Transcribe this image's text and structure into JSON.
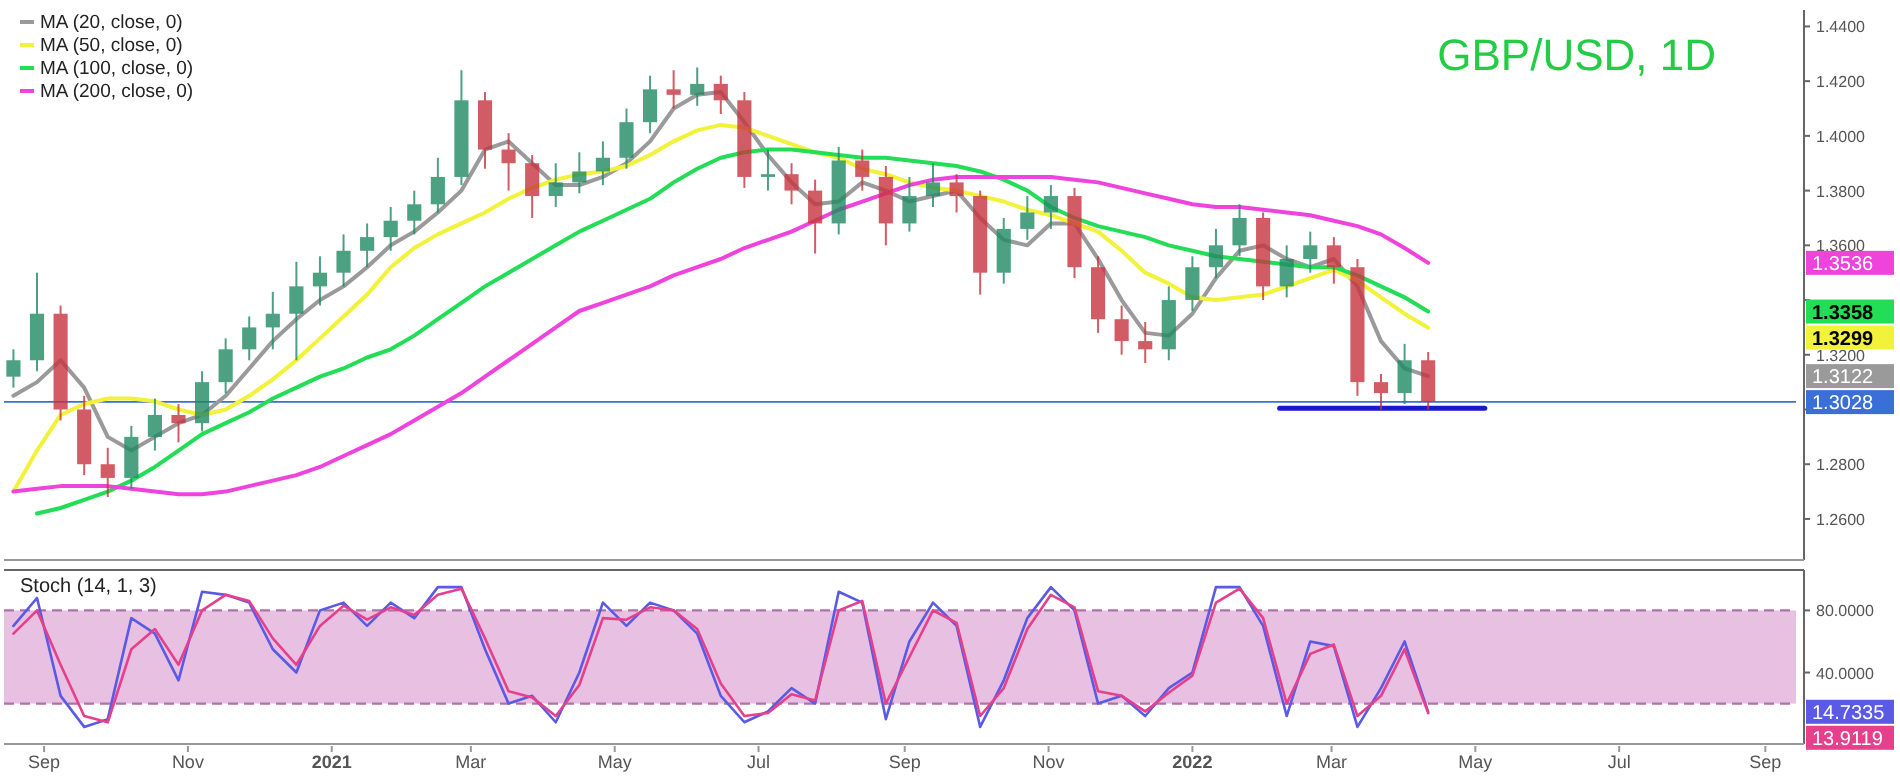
{
  "chart_data": [
    {
      "type": "candlestick",
      "title": "GBP/USD, 1D",
      "legend": "top left",
      "tick_labels": "y",
      "xlim": [
        "2020-08-15",
        "2022-09-14"
      ],
      "ylim": [
        1.245,
        1.446
      ],
      "yticks": [
        {
          "value": 1.26,
          "label": "1.2600"
        },
        {
          "value": 1.28,
          "label": "1.2800"
        },
        {
          "value": 1.3,
          "label": null
        },
        {
          "value": 1.32,
          "label": "1.3200"
        },
        {
          "value": 1.34,
          "label": null
        },
        {
          "value": 1.36,
          "label": "1.3600"
        },
        {
          "value": 1.38,
          "label": "1.3800"
        },
        {
          "value": 1.4,
          "label": "1.4000"
        },
        {
          "value": 1.42,
          "label": "1.4200"
        },
        {
          "value": 1.44,
          "label": "1.4400"
        }
      ],
      "x": [
        "2020-08-19",
        "2020-08-29",
        "2020-09-08",
        "2020-09-18",
        "2020-09-28",
        "2020-10-08",
        "2020-10-18",
        "2020-10-28",
        "2020-11-07",
        "2020-11-17",
        "2020-11-27",
        "2020-12-07",
        "2020-12-17",
        "2020-12-27",
        "2021-01-06",
        "2021-01-16",
        "2021-01-26",
        "2021-02-05",
        "2021-02-15",
        "2021-02-25",
        "2021-03-07",
        "2021-03-17",
        "2021-03-27",
        "2021-04-06",
        "2021-04-16",
        "2021-04-26",
        "2021-05-06",
        "2021-05-16",
        "2021-05-26",
        "2021-06-05",
        "2021-06-15",
        "2021-06-25",
        "2021-07-05",
        "2021-07-15",
        "2021-07-25",
        "2021-08-04",
        "2021-08-14",
        "2021-08-24",
        "2021-09-03",
        "2021-09-13",
        "2021-09-23",
        "2021-10-03",
        "2021-10-13",
        "2021-10-23",
        "2021-11-02",
        "2021-11-12",
        "2021-11-22",
        "2021-12-02",
        "2021-12-12",
        "2021-12-22",
        "2022-01-01",
        "2022-01-11",
        "2022-01-21",
        "2022-01-31",
        "2022-02-10",
        "2022-02-20",
        "2022-03-02",
        "2022-03-12",
        "2022-03-22",
        "2022-04-01",
        "2022-04-11"
      ],
      "ohlc": [
        [
          1.312,
          1.322,
          1.308,
          1.318
        ],
        [
          1.318,
          1.35,
          1.314,
          1.335
        ],
        [
          1.335,
          1.338,
          1.296,
          1.3
        ],
        [
          1.3,
          1.305,
          1.276,
          1.28
        ],
        [
          1.28,
          1.286,
          1.268,
          1.275
        ],
        [
          1.275,
          1.294,
          1.271,
          1.29
        ],
        [
          1.29,
          1.304,
          1.285,
          1.298
        ],
        [
          1.298,
          1.302,
          1.288,
          1.295
        ],
        [
          1.295,
          1.314,
          1.292,
          1.31
        ],
        [
          1.31,
          1.326,
          1.306,
          1.322
        ],
        [
          1.322,
          1.334,
          1.318,
          1.33
        ],
        [
          1.33,
          1.343,
          1.322,
          1.335
        ],
        [
          1.335,
          1.354,
          1.318,
          1.345
        ],
        [
          1.345,
          1.356,
          1.338,
          1.35
        ],
        [
          1.35,
          1.364,
          1.345,
          1.358
        ],
        [
          1.358,
          1.368,
          1.352,
          1.363
        ],
        [
          1.363,
          1.374,
          1.358,
          1.369
        ],
        [
          1.369,
          1.38,
          1.364,
          1.375
        ],
        [
          1.375,
          1.392,
          1.372,
          1.385
        ],
        [
          1.385,
          1.424,
          1.382,
          1.413
        ],
        [
          1.413,
          1.416,
          1.388,
          1.395
        ],
        [
          1.395,
          1.401,
          1.38,
          1.39
        ],
        [
          1.39,
          1.393,
          1.37,
          1.378
        ],
        [
          1.378,
          1.39,
          1.374,
          1.383
        ],
        [
          1.383,
          1.394,
          1.379,
          1.387
        ],
        [
          1.387,
          1.398,
          1.382,
          1.392
        ],
        [
          1.392,
          1.41,
          1.388,
          1.405
        ],
        [
          1.405,
          1.422,
          1.401,
          1.417
        ],
        [
          1.417,
          1.424,
          1.41,
          1.415
        ],
        [
          1.415,
          1.425,
          1.411,
          1.419
        ],
        [
          1.419,
          1.422,
          1.408,
          1.413
        ],
        [
          1.413,
          1.416,
          1.381,
          1.385
        ],
        [
          1.385,
          1.395,
          1.38,
          1.386
        ],
        [
          1.386,
          1.39,
          1.375,
          1.38
        ],
        [
          1.38,
          1.384,
          1.357,
          1.368
        ],
        [
          1.368,
          1.396,
          1.364,
          1.391
        ],
        [
          1.391,
          1.395,
          1.38,
          1.385
        ],
        [
          1.385,
          1.389,
          1.36,
          1.368
        ],
        [
          1.368,
          1.385,
          1.365,
          1.378
        ],
        [
          1.378,
          1.39,
          1.374,
          1.383
        ],
        [
          1.383,
          1.386,
          1.372,
          1.378
        ],
        [
          1.378,
          1.38,
          1.342,
          1.35
        ],
        [
          1.35,
          1.37,
          1.346,
          1.366
        ],
        [
          1.366,
          1.378,
          1.362,
          1.372
        ],
        [
          1.372,
          1.382,
          1.366,
          1.378
        ],
        [
          1.378,
          1.381,
          1.348,
          1.352
        ],
        [
          1.352,
          1.356,
          1.328,
          1.333
        ],
        [
          1.333,
          1.338,
          1.32,
          1.325
        ],
        [
          1.325,
          1.332,
          1.317,
          1.322
        ],
        [
          1.322,
          1.345,
          1.318,
          1.34
        ],
        [
          1.34,
          1.356,
          1.336,
          1.352
        ],
        [
          1.352,
          1.366,
          1.348,
          1.36
        ],
        [
          1.36,
          1.375,
          1.356,
          1.37
        ],
        [
          1.37,
          1.372,
          1.34,
          1.345
        ],
        [
          1.345,
          1.36,
          1.341,
          1.355
        ],
        [
          1.355,
          1.365,
          1.35,
          1.36
        ],
        [
          1.36,
          1.363,
          1.346,
          1.352
        ],
        [
          1.352,
          1.355,
          1.305,
          1.31
        ],
        [
          1.31,
          1.313,
          1.3,
          1.306
        ],
        [
          1.306,
          1.324,
          1.302,
          1.318
        ],
        [
          1.318,
          1.321,
          1.3,
          1.3028
        ]
      ],
      "series": [
        {
          "type": "line",
          "name": "MA (20, close, 0)",
          "color": "#9a9a9a",
          "values": [
            1.305,
            1.31,
            1.318,
            1.308,
            1.29,
            1.285,
            1.29,
            1.295,
            1.298,
            1.305,
            1.315,
            1.325,
            1.333,
            1.34,
            1.345,
            1.352,
            1.36,
            1.365,
            1.372,
            1.38,
            1.395,
            1.398,
            1.39,
            1.382,
            1.382,
            1.385,
            1.39,
            1.398,
            1.41,
            1.415,
            1.416,
            1.405,
            1.393,
            1.383,
            1.375,
            1.376,
            1.383,
            1.38,
            1.376,
            1.378,
            1.38,
            1.37,
            1.362,
            1.36,
            1.368,
            1.368,
            1.355,
            1.34,
            1.328,
            1.327,
            1.335,
            1.348,
            1.358,
            1.36,
            1.355,
            1.352,
            1.355,
            1.345,
            1.325,
            1.315,
            1.3122
          ]
        },
        {
          "type": "line",
          "name": "MA (50, close, 0)",
          "color": "#f2f23a",
          "values": [
            1.27,
            1.285,
            1.298,
            1.302,
            1.304,
            1.304,
            1.303,
            1.3,
            1.298,
            1.3,
            1.305,
            1.311,
            1.318,
            1.326,
            1.334,
            1.342,
            1.352,
            1.359,
            1.364,
            1.368,
            1.372,
            1.377,
            1.381,
            1.384,
            1.386,
            1.387,
            1.389,
            1.393,
            1.398,
            1.402,
            1.404,
            1.403,
            1.4,
            1.397,
            1.394,
            1.392,
            1.388,
            1.386,
            1.383,
            1.381,
            1.38,
            1.378,
            1.376,
            1.373,
            1.371,
            1.368,
            1.365,
            1.358,
            1.35,
            1.346,
            1.341,
            1.34,
            1.341,
            1.342,
            1.345,
            1.348,
            1.351,
            1.347,
            1.341,
            1.335,
            1.3299
          ]
        },
        {
          "type": "line",
          "name": "MA (100, close, 0)",
          "color": "#22dd55",
          "values": [
            null,
            1.262,
            1.264,
            1.267,
            1.27,
            1.274,
            1.279,
            1.285,
            1.291,
            1.295,
            1.299,
            1.304,
            1.308,
            1.312,
            1.315,
            1.319,
            1.322,
            1.327,
            1.333,
            1.339,
            1.345,
            1.35,
            1.355,
            1.36,
            1.365,
            1.369,
            1.373,
            1.377,
            1.383,
            1.388,
            1.392,
            1.394,
            1.395,
            1.395,
            1.394,
            1.393,
            1.392,
            1.392,
            1.391,
            1.39,
            1.389,
            1.387,
            1.384,
            1.38,
            1.374,
            1.37,
            1.367,
            1.365,
            1.363,
            1.36,
            1.358,
            1.356,
            1.355,
            1.354,
            1.353,
            1.352,
            1.352,
            1.349,
            1.345,
            1.341,
            1.3358
          ]
        },
        {
          "type": "line",
          "name": "MA (200, close, 0)",
          "color": "#ee44dd",
          "values": [
            1.27,
            1.271,
            1.272,
            1.272,
            1.272,
            1.271,
            1.27,
            1.269,
            1.269,
            1.27,
            1.272,
            1.274,
            1.276,
            1.279,
            1.283,
            1.287,
            1.291,
            1.296,
            1.301,
            1.306,
            1.312,
            1.318,
            1.324,
            1.33,
            1.336,
            1.339,
            1.342,
            1.345,
            1.349,
            1.352,
            1.355,
            1.359,
            1.362,
            1.365,
            1.369,
            1.373,
            1.376,
            1.379,
            1.382,
            1.384,
            1.385,
            1.385,
            1.385,
            1.385,
            1.385,
            1.384,
            1.383,
            1.381,
            1.379,
            1.377,
            1.375,
            1.374,
            1.374,
            1.373,
            1.372,
            1.371,
            1.369,
            1.367,
            1.364,
            1.359,
            1.3536
          ]
        },
        {
          "type": "line",
          "color": "#1a1acc",
          "x": [
            "2022-02-07",
            "2022-05-05"
          ],
          "values": [
            1.3005,
            1.3005
          ]
        }
      ],
      "ref_lines": [
        {
          "axis": "y",
          "value": 1.3028,
          "label": "1.3028",
          "color": "#3a6fd8"
        }
      ],
      "annotations": [
        "1.3122",
        "1.3299",
        "1.3358",
        "1.3536"
      ]
    },
    {
      "type": "line",
      "title": "Stoch (14, 1, 3)",
      "xlim": [
        "2020-08-15",
        "2022-09-14"
      ],
      "xticks": [
        {
          "value": "2020-09-01",
          "label": "Sep"
        },
        {
          "value": "2020-11-01",
          "label": "Nov"
        },
        {
          "value": "2021-01-01",
          "label": "2021"
        },
        {
          "value": "2021-03-01",
          "label": "Mar"
        },
        {
          "value": "2021-05-01",
          "label": "May"
        },
        {
          "value": "2021-07-01",
          "label": "Jul"
        },
        {
          "value": "2021-09-01",
          "label": "Sep"
        },
        {
          "value": "2021-11-01",
          "label": "Nov"
        },
        {
          "value": "2022-01-01",
          "label": "2022"
        },
        {
          "value": "2022-03-01",
          "label": "Mar"
        },
        {
          "value": "2022-05-01",
          "label": "May"
        },
        {
          "value": "2022-07-01",
          "label": "Jul"
        },
        {
          "value": "2022-09-01",
          "label": "Sep"
        }
      ],
      "ylim": [
        -6,
        106
      ],
      "yticks": [
        {
          "value": 40,
          "label": "40.0000"
        },
        {
          "value": 80,
          "label": "80.0000"
        }
      ],
      "x": [
        "2020-08-19",
        "2020-08-29",
        "2020-09-08",
        "2020-09-18",
        "2020-09-28",
        "2020-10-08",
        "2020-10-18",
        "2020-10-28",
        "2020-11-07",
        "2020-11-17",
        "2020-11-27",
        "2020-12-07",
        "2020-12-17",
        "2020-12-27",
        "2021-01-06",
        "2021-01-16",
        "2021-01-26",
        "2021-02-05",
        "2021-02-15",
        "2021-02-25",
        "2021-03-07",
        "2021-03-17",
        "2021-03-27",
        "2021-04-06",
        "2021-04-16",
        "2021-04-26",
        "2021-05-06",
        "2021-05-16",
        "2021-05-26",
        "2021-06-05",
        "2021-06-15",
        "2021-06-25",
        "2021-07-05",
        "2021-07-15",
        "2021-07-25",
        "2021-08-04",
        "2021-08-14",
        "2021-08-24",
        "2021-09-03",
        "2021-09-13",
        "2021-09-23",
        "2021-10-03",
        "2021-10-13",
        "2021-10-23",
        "2021-11-02",
        "2021-11-12",
        "2021-11-22",
        "2021-12-02",
        "2021-12-12",
        "2021-12-22",
        "2022-01-01",
        "2022-01-11",
        "2022-01-21",
        "2022-01-31",
        "2022-02-10",
        "2022-02-20",
        "2022-03-02",
        "2022-03-12",
        "2022-03-22",
        "2022-04-01",
        "2022-04-11"
      ],
      "series": [
        {
          "color": "#5a5ae6",
          "values": [
            70,
            88,
            25,
            5,
            10,
            75,
            65,
            35,
            92,
            90,
            85,
            55,
            40,
            80,
            85,
            70,
            85,
            75,
            95,
            95,
            55,
            20,
            25,
            8,
            40,
            85,
            70,
            85,
            80,
            65,
            25,
            8,
            15,
            30,
            20,
            92,
            85,
            10,
            60,
            85,
            70,
            5,
            35,
            75,
            95,
            80,
            20,
            25,
            12,
            30,
            40,
            95,
            95,
            70,
            12,
            60,
            57,
            5,
            30,
            60,
            14.7335
          ]
        },
        {
          "color": "#e6408c",
          "values": [
            65,
            80,
            45,
            12,
            8,
            55,
            68,
            45,
            80,
            90,
            86,
            62,
            45,
            70,
            83,
            74,
            82,
            77,
            90,
            94,
            62,
            28,
            24,
            12,
            32,
            75,
            74,
            82,
            80,
            68,
            33,
            12,
            14,
            26,
            22,
            80,
            86,
            20,
            50,
            80,
            72,
            12,
            30,
            68,
            90,
            82,
            28,
            25,
            15,
            27,
            38,
            85,
            94,
            75,
            20,
            52,
            58,
            12,
            25,
            55,
            13.9119
          ]
        }
      ],
      "bands": [
        {
          "axis": "y",
          "from": 20,
          "to": 80,
          "color": "#e8c0e2"
        }
      ],
      "ref_lines": [
        {
          "axis": "y",
          "value": 20,
          "color": "#b070a8",
          "line_style": "dashed"
        },
        {
          "axis": "y",
          "value": 80,
          "color": "#b070a8",
          "line_style": "dashed"
        }
      ],
      "annotations": [
        "14.7335",
        "13.9119"
      ]
    }
  ]
}
